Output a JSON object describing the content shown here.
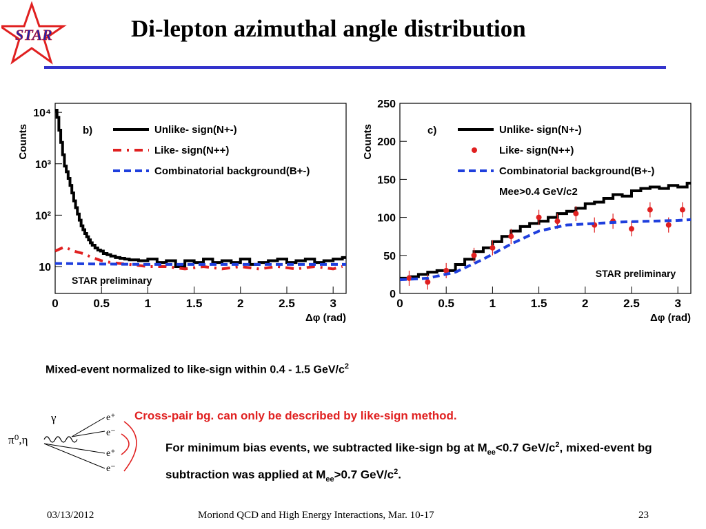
{
  "logo_text": "STAR",
  "title": "Di-lepton azimuthal angle distribution",
  "colors": {
    "accent_rule": "#3333cc",
    "unlike": "#000000",
    "like": "#e02020",
    "combinatorial": "#1f3fdd",
    "logo_red": "#e02020",
    "logo_blue": "#2222aa"
  },
  "chart_data": [
    {
      "type": "line",
      "panel_label": "b)",
      "xlabel": "Δφ (rad)",
      "ylabel": "Counts",
      "log_y": true,
      "xlim": [
        0,
        3.14
      ],
      "ylim": [
        3,
        15000
      ],
      "x_ticks": [
        "0",
        "0.5",
        "1",
        "1.5",
        "2",
        "2.5",
        "3"
      ],
      "x_tick_values": [
        0,
        0.5,
        1,
        1.5,
        2,
        2.5,
        3
      ],
      "y_ticks": [
        "10",
        "10²",
        "10³",
        "10⁴"
      ],
      "y_tick_values": [
        10,
        100,
        1000,
        10000
      ],
      "legend_position": "top-right",
      "watermark": "STAR preliminary",
      "series": [
        {
          "name": "Unlike- sign(N+-)",
          "style": "histogram",
          "color": "#000000",
          "x": [
            0.0,
            0.02,
            0.04,
            0.06,
            0.08,
            0.1,
            0.12,
            0.14,
            0.16,
            0.18,
            0.2,
            0.22,
            0.24,
            0.26,
            0.28,
            0.3,
            0.32,
            0.34,
            0.36,
            0.38,
            0.4,
            0.43,
            0.46,
            0.49,
            0.52,
            0.56,
            0.6,
            0.65,
            0.7,
            0.75,
            0.8,
            0.9,
            1.0,
            1.1,
            1.2,
            1.3,
            1.4,
            1.5,
            1.6,
            1.7,
            1.8,
            1.9,
            2.0,
            2.1,
            2.2,
            2.3,
            2.4,
            2.5,
            2.6,
            2.7,
            2.8,
            2.9,
            3.0,
            3.1
          ],
          "y": [
            11000,
            8000,
            4500,
            2600,
            1500,
            900,
            700,
            520,
            380,
            270,
            190,
            140,
            105,
            80,
            62,
            52,
            44,
            38,
            33,
            29,
            26,
            23,
            21,
            20,
            18,
            17,
            16,
            15,
            14.5,
            14,
            13.5,
            13,
            14,
            12,
            13,
            10,
            13,
            12,
            14,
            12,
            13,
            12,
            14,
            11,
            12,
            13,
            14,
            12,
            13,
            14,
            12,
            13,
            14,
            15
          ]
        },
        {
          "name": "Like- sign(N++)",
          "style": "dashdot",
          "color": "#e02020",
          "x": [
            0.0,
            0.05,
            0.1,
            0.15,
            0.2,
            0.3,
            0.4,
            0.5,
            0.6,
            0.8,
            1.0,
            1.2,
            1.4,
            1.6,
            1.8,
            2.0,
            2.2,
            2.4,
            2.6,
            2.8,
            3.0,
            3.1
          ],
          "y": [
            20,
            22,
            24,
            22,
            20,
            18,
            15,
            13,
            12,
            11,
            10,
            10,
            9,
            10,
            9,
            10,
            9,
            10,
            9,
            10,
            9,
            10
          ]
        },
        {
          "name": "Combinatorial background(B+-)",
          "style": "dashed",
          "color": "#1f3fdd",
          "x": [
            0.0,
            0.5,
            1.0,
            1.5,
            2.0,
            2.5,
            3.14
          ],
          "y": [
            11.5,
            11.2,
            11.0,
            11.0,
            11.0,
            11.0,
            11.0
          ]
        }
      ]
    },
    {
      "type": "line",
      "panel_label": "c)",
      "xlabel": "Δφ (rad)",
      "ylabel": "Counts",
      "log_y": false,
      "xlim": [
        0,
        3.14
      ],
      "ylim": [
        0,
        250
      ],
      "x_ticks": [
        "0",
        "0.5",
        "1",
        "1.5",
        "2",
        "2.5",
        "3"
      ],
      "x_tick_values": [
        0,
        0.5,
        1,
        1.5,
        2,
        2.5,
        3
      ],
      "y_ticks": [
        "0",
        "50",
        "100",
        "150",
        "200",
        "250"
      ],
      "y_tick_values": [
        0,
        50,
        100,
        150,
        200,
        250
      ],
      "legend_position": "top-right",
      "annotation": "Mee>0.4 GeV/c2",
      "watermark": "STAR preliminary",
      "series": [
        {
          "name": "Unlike- sign(N+-)",
          "style": "histogram",
          "color": "#000000",
          "x": [
            0.0,
            0.1,
            0.2,
            0.3,
            0.4,
            0.5,
            0.6,
            0.7,
            0.8,
            0.9,
            1.0,
            1.1,
            1.2,
            1.3,
            1.4,
            1.5,
            1.6,
            1.7,
            1.8,
            1.9,
            2.0,
            2.1,
            2.2,
            2.3,
            2.4,
            2.5,
            2.6,
            2.7,
            2.8,
            2.9,
            3.0,
            3.1
          ],
          "y": [
            20,
            22,
            25,
            28,
            30,
            30,
            38,
            45,
            55,
            60,
            68,
            75,
            82,
            88,
            92,
            95,
            100,
            105,
            108,
            112,
            118,
            120,
            125,
            130,
            128,
            135,
            138,
            140,
            138,
            142,
            140,
            145
          ]
        },
        {
          "name": "Like- sign(N++)",
          "style": "points",
          "color": "#e02020",
          "x": [
            0.1,
            0.3,
            0.5,
            0.8,
            1.0,
            1.2,
            1.5,
            1.7,
            1.9,
            2.1,
            2.3,
            2.5,
            2.7,
            2.9,
            3.05
          ],
          "y": [
            20,
            15,
            30,
            50,
            60,
            75,
            100,
            95,
            105,
            90,
            95,
            85,
            110,
            90,
            110
          ]
        },
        {
          "name": "Combinatorial background(B+-)",
          "style": "dashed",
          "color": "#1f3fdd",
          "x": [
            0.0,
            0.3,
            0.6,
            0.9,
            1.2,
            1.5,
            1.8,
            2.1,
            2.4,
            2.7,
            3.0,
            3.14
          ],
          "y": [
            18,
            20,
            28,
            45,
            65,
            82,
            90,
            92,
            94,
            95,
            96,
            97
          ]
        }
      ]
    }
  ],
  "notes": {
    "mixed_event": "Mixed-event normalized to like-sign within 0.4 - 1.5 GeV/c",
    "mixed_event_sup": "2",
    "cross_pair": "Cross-pair bg. can only be described by like-sign method.",
    "minbias_1": "For minimum bias events, we subtracted like-sign bg at M",
    "minbias_sub1": "ee",
    "minbias_2": "<0.7 GeV/c",
    "minbias_sup1": "2",
    "minbias_3": ", mixed-event bg subtraction was applied at M",
    "minbias_sub2": "ee",
    "minbias_4": ">0.7 GeV/c",
    "minbias_sup2": "2",
    "minbias_5": "."
  },
  "diagram": {
    "source": "π⁰,η",
    "gamma": "γ",
    "e_plus": "e⁺",
    "e_minus": "e⁻"
  },
  "footer": {
    "date": "03/13/2012",
    "conference": "Moriond QCD and High Energy Interactions, Mar. 10-17",
    "page": "23"
  }
}
